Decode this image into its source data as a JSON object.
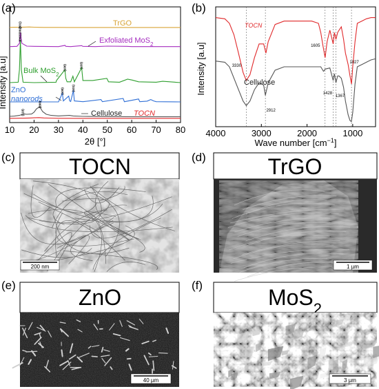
{
  "panel_labels": [
    "(a)",
    "(b)",
    "(c)",
    "(d)",
    "(e)",
    "(f)"
  ],
  "chart_data": [
    {
      "type": "line",
      "panel": "(a)",
      "xlabel": "2θ [°]",
      "ylabel": "Intensity [a.u]",
      "xlim": [
        10,
        80
      ],
      "x_ticks": [
        "10",
        "20",
        "30",
        "40",
        "50",
        "60",
        "70",
        "80"
      ],
      "series": [
        {
          "name": "TrGO",
          "color": "#d8a335",
          "x": [
            10,
            12,
            14,
            16,
            18,
            20,
            22,
            24,
            26,
            28,
            30,
            35,
            40,
            45,
            50,
            60,
            70,
            80
          ],
          "y": [
            0.04,
            0.045,
            0.06,
            0.08,
            0.1,
            0.06,
            0.04,
            0.03,
            0.025,
            0.02,
            0.02,
            0.015,
            0.015,
            0.01,
            0.01,
            0.01,
            0.01,
            0.01
          ]
        },
        {
          "name": "Exfoliated MoS",
          "color": "#a52dbf",
          "x": [
            10,
            13,
            14,
            14.4,
            15,
            17,
            20,
            30,
            32.7,
            33,
            35,
            39.5,
            40,
            45,
            50,
            58,
            60,
            70,
            80
          ],
          "y": [
            0.01,
            0.02,
            0.15,
            0.6,
            0.15,
            0.03,
            0.02,
            0.01,
            0.06,
            0.02,
            0.01,
            0.05,
            0.02,
            0.01,
            0.03,
            0.02,
            0.01,
            0.01,
            0.01
          ]
        },
        {
          "name": "Bulk MoS",
          "color": "#2d9e2d",
          "x": [
            10,
            13.5,
            14.0,
            14.4,
            14.8,
            15.5,
            20,
            29,
            29.2,
            32.6,
            33,
            33.5,
            35,
            35.9,
            36.5,
            39.5,
            40,
            44,
            49.8,
            50.5,
            55,
            58.3,
            60.2,
            62.8,
            70,
            72.7,
            80
          ],
          "y": [
            0.0,
            0.01,
            0.3,
            1.0,
            0.3,
            0.01,
            0.0,
            0.01,
            0.05,
            0.3,
            0.1,
            0.02,
            0.02,
            0.15,
            0.02,
            0.35,
            0.05,
            0.05,
            0.1,
            0.02,
            0.01,
            0.08,
            0.06,
            0.02,
            0.01,
            0.03,
            0.0
          ]
        },
        {
          "name": "ZnO nanorods",
          "color": "#2f6fd6",
          "x": [
            10,
            30,
            31.6,
            32,
            34.2,
            34.6,
            35,
            36.1,
            36.5,
            40,
            47.4,
            48,
            56.5,
            57,
            62.8,
            63.3,
            66.3,
            67.8,
            69,
            70,
            80
          ],
          "y": [
            0.0,
            0.0,
            0.45,
            0.05,
            0.3,
            0.05,
            0.02,
            0.6,
            0.05,
            0.01,
            0.12,
            0.01,
            0.18,
            0.01,
            0.15,
            0.01,
            0.04,
            0.12,
            0.05,
            0.01,
            0.0
          ]
        },
        {
          "name": "Cellulose",
          "color": "#555555",
          "x": [
            10,
            12,
            14,
            15,
            16,
            17,
            19,
            20,
            21,
            22.3,
            23.5,
            25,
            27,
            30,
            34.5,
            36,
            40,
            50,
            60,
            70,
            80
          ],
          "y": [
            0.05,
            0.07,
            0.12,
            0.18,
            0.22,
            0.2,
            0.22,
            0.35,
            0.6,
            0.75,
            0.4,
            0.2,
            0.12,
            0.08,
            0.12,
            0.08,
            0.05,
            0.03,
            0.02,
            0.02,
            0.02
          ]
        },
        {
          "name": "TOCN",
          "color": "#e0282a",
          "x": [
            10,
            12,
            14,
            16,
            18,
            20,
            22,
            24,
            26,
            30,
            40,
            50,
            60,
            70,
            80
          ],
          "y": [
            0.02,
            0.03,
            0.05,
            0.07,
            0.1,
            0.15,
            0.2,
            0.12,
            0.08,
            0.04,
            0.02,
            0.01,
            0.01,
            0.01,
            0.01
          ]
        }
      ],
      "peak_labels": [
        {
          "text": "(001)",
          "x": 14.4,
          "series": "TrGO"
        },
        {
          "text": "(002)",
          "x": 14.4,
          "series": "Exfoliated MoS"
        },
        {
          "text": "(002)",
          "x": 14.4,
          "series": "Bulk MoS"
        },
        {
          "text": "(100)",
          "x": 32.7,
          "series": "Bulk MoS"
        },
        {
          "text": "(103)",
          "x": 39.5,
          "series": "Bulk MoS"
        },
        {
          "text": "(100)",
          "x": 31.7,
          "series": "ZnO nanorods"
        },
        {
          "text": "(101)",
          "x": 36.2,
          "series": "ZnO nanorods"
        },
        {
          "text": "(110)",
          "x": 15.5,
          "series": "Cellulose"
        },
        {
          "text": "(200)",
          "x": 22.5,
          "series": "Cellulose"
        }
      ]
    },
    {
      "type": "line",
      "panel": "(b)",
      "xlabel": "Wave number [cm",
      "xlabel_sup": "−1",
      "xlabel_end": "]",
      "ylabel": "Intensity [a.u]",
      "xlim": [
        4000,
        500
      ],
      "x_ticks": [
        "4000",
        "3000",
        "2000",
        "1000"
      ],
      "series": [
        {
          "name": "TOCN",
          "color": "#e0282a",
          "x": [
            4000,
            3800,
            3700,
            3600,
            3500,
            3400,
            3330,
            3250,
            3150,
            3050,
            2950,
            2900,
            2850,
            2700,
            2500,
            2300,
            2100,
            1900,
            1750,
            1700,
            1650,
            1605,
            1560,
            1500,
            1428,
            1400,
            1367,
            1330,
            1300,
            1250,
            1200,
            1160,
            1100,
            1060,
            1027,
            1000,
            950,
            900,
            800,
            700,
            600,
            500
          ],
          "y": [
            0.93,
            0.92,
            0.88,
            0.78,
            0.62,
            0.45,
            0.38,
            0.43,
            0.58,
            0.7,
            0.7,
            0.62,
            0.72,
            0.87,
            0.9,
            0.9,
            0.9,
            0.9,
            0.88,
            0.8,
            0.68,
            0.58,
            0.72,
            0.82,
            0.7,
            0.8,
            0.74,
            0.8,
            0.82,
            0.85,
            0.74,
            0.62,
            0.52,
            0.42,
            0.35,
            0.5,
            0.72,
            0.88,
            0.9,
            0.92,
            0.93,
            0.93
          ]
        },
        {
          "name": "Cellulose",
          "color": "#555555",
          "x": [
            4000,
            3800,
            3700,
            3600,
            3500,
            3400,
            3330,
            3250,
            3150,
            3050,
            2950,
            2912,
            2850,
            2700,
            2500,
            2300,
            2100,
            1900,
            1700,
            1640,
            1600,
            1500,
            1428,
            1400,
            1367,
            1330,
            1300,
            1250,
            1200,
            1160,
            1100,
            1060,
            1030,
            1000,
            950,
            900,
            800,
            700,
            600,
            500
          ],
          "y": [
            0.55,
            0.54,
            0.5,
            0.4,
            0.3,
            0.2,
            0.16,
            0.2,
            0.3,
            0.36,
            0.34,
            0.25,
            0.36,
            0.47,
            0.5,
            0.5,
            0.5,
            0.5,
            0.5,
            0.46,
            0.48,
            0.49,
            0.38,
            0.44,
            0.36,
            0.42,
            0.42,
            0.4,
            0.32,
            0.2,
            0.08,
            0.03,
            0.02,
            0.1,
            0.35,
            0.5,
            0.52,
            0.54,
            0.56,
            0.57
          ]
        }
      ],
      "reference_lines": [
        3330,
        2912,
        1605,
        1428,
        1367,
        1027
      ],
      "annotations": [
        {
          "text": "3330",
          "x": 3330
        },
        {
          "text": "2912",
          "x": 2912
        },
        {
          "text": "1605",
          "x": 1605
        },
        {
          "text": "1428",
          "x": 1428
        },
        {
          "text": "1367",
          "x": 1367
        },
        {
          "text": "1027",
          "x": 1027
        }
      ]
    }
  ],
  "micrographs": [
    {
      "panel": "(c)",
      "title": "TOCN",
      "scale": "200 nm"
    },
    {
      "panel": "(d)",
      "title": "TrGO",
      "scale": "1 µm"
    },
    {
      "panel": "(e)",
      "title": "ZnO",
      "scale": "40 µm"
    },
    {
      "panel": "(f)",
      "title": "MoS",
      "title_sub": "2",
      "scale": "3 µm"
    }
  ],
  "labels_a": {
    "trgo": "TrGO",
    "exfoliated": "Exfoliated MoS",
    "exfoliated_sub": "2",
    "bulk": "Bulk MoS",
    "bulk_sub": "2",
    "zno": "ZnO",
    "nanorods": "nanorods",
    "cellulose": "Cellulose",
    "tocn": "TOCN"
  },
  "labels_b": {
    "tocn": "TOCN",
    "cellulose": "Cellulose"
  }
}
